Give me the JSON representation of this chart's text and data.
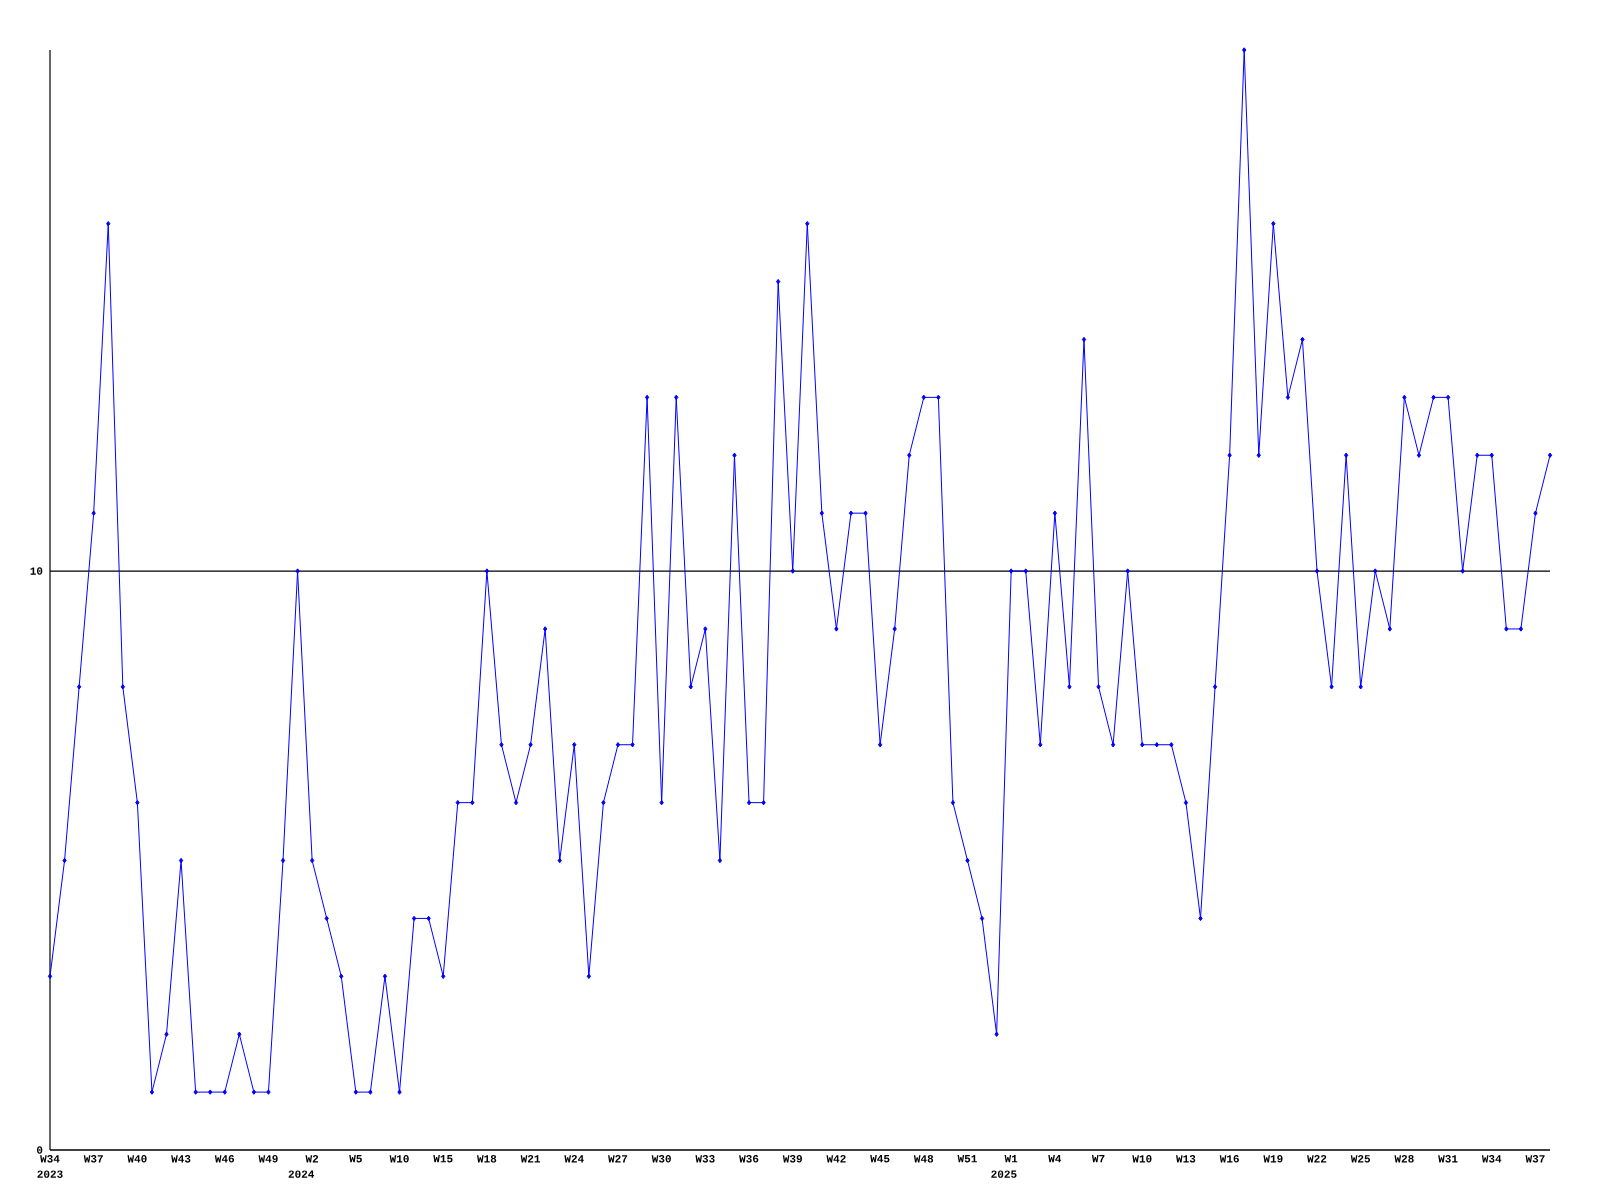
{
  "chart_data": {
    "type": "line",
    "categories": [
      "W34",
      null,
      null,
      "W37",
      null,
      null,
      "W40",
      null,
      null,
      "W43",
      null,
      null,
      "W46",
      null,
      null,
      "W49",
      null,
      null,
      "W2",
      null,
      null,
      "W5",
      null,
      null,
      "W10",
      null,
      null,
      "W15",
      null,
      null,
      "W18",
      null,
      null,
      "W21",
      null,
      null,
      "W24",
      null,
      null,
      "W27",
      null,
      null,
      "W30",
      null,
      null,
      "W33",
      null,
      null,
      "W36",
      null,
      null,
      "W39",
      null,
      null,
      "W42",
      null,
      null,
      "W45",
      null,
      null,
      "W48",
      null,
      null,
      "W51",
      null,
      null,
      "W1",
      null,
      null,
      "W4",
      null,
      null,
      "W7",
      null,
      null,
      "W10",
      null,
      null,
      "W13",
      null,
      null,
      "W16",
      null,
      null,
      "W19",
      null,
      null,
      "W22",
      null,
      null,
      "W25",
      null,
      null,
      "W28",
      null,
      null,
      "W31",
      null,
      null,
      "W34",
      null,
      null,
      "W37",
      null
    ],
    "series": [
      {
        "color": "#0000ff",
        "values": [
          3,
          5,
          8,
          11,
          16,
          8,
          6,
          1,
          2,
          5,
          1,
          1,
          1,
          2,
          1,
          1,
          5,
          10,
          5,
          4,
          3,
          1,
          1,
          3,
          1,
          4,
          4,
          3,
          6,
          6,
          10,
          7,
          6,
          7,
          9,
          5,
          7,
          3,
          6,
          7,
          7,
          13,
          6,
          13,
          8,
          9,
          5,
          12,
          6,
          6,
          15,
          10,
          16,
          11,
          9,
          11,
          11,
          7,
          9,
          12,
          13,
          13,
          6,
          5,
          4,
          2,
          10,
          10,
          7,
          11,
          8,
          14,
          8,
          7,
          10,
          7,
          7,
          7,
          6,
          4,
          8,
          12,
          19,
          12,
          16,
          13,
          14,
          10,
          8,
          12,
          8,
          10,
          9,
          13,
          12,
          13,
          13,
          10,
          12,
          12,
          9,
          9,
          11,
          12
        ]
      }
    ],
    "ylim": [
      0,
      19
    ],
    "yticks": [
      0,
      10
    ],
    "grid": "y",
    "marker": "diamond",
    "annotations": [
      "2023",
      "2024",
      "2025"
    ]
  }
}
